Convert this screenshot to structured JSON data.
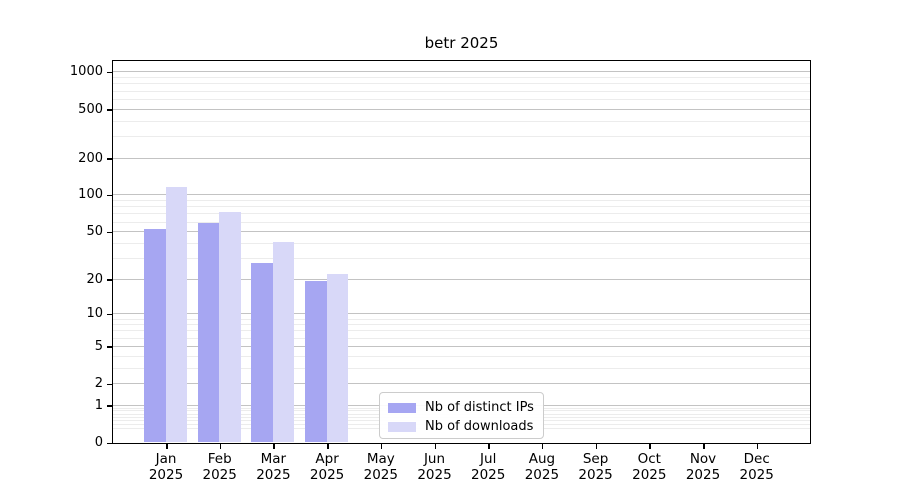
{
  "title": "betr 2025",
  "chart_data": {
    "type": "bar",
    "title": "betr 2025",
    "x_tick_months": [
      "Jan",
      "Feb",
      "Mar",
      "Apr",
      "May",
      "Jun",
      "Jul",
      "Aug",
      "Sep",
      "Oct",
      "Nov",
      "Dec"
    ],
    "x_tick_year": "2025",
    "yticks": [
      0,
      1,
      2,
      5,
      10,
      20,
      50,
      100,
      200,
      500,
      1000
    ],
    "yscale": "log10(value+1)",
    "ylim": [
      0,
      1250
    ],
    "grid": "horizontal major and minor gridlines",
    "legend_position": "lower center",
    "series": [
      {
        "name": "Nb of distinct IPs",
        "color": "#a6a6f2",
        "values": [
          52,
          58,
          27,
          19,
          0,
          0,
          0,
          0,
          0,
          0,
          0,
          0
        ]
      },
      {
        "name": "Nb of downloads",
        "color": "#d8d8f8",
        "values": [
          115,
          72,
          41,
          22,
          0,
          0,
          0,
          0,
          0,
          0,
          0,
          0
        ]
      }
    ]
  }
}
